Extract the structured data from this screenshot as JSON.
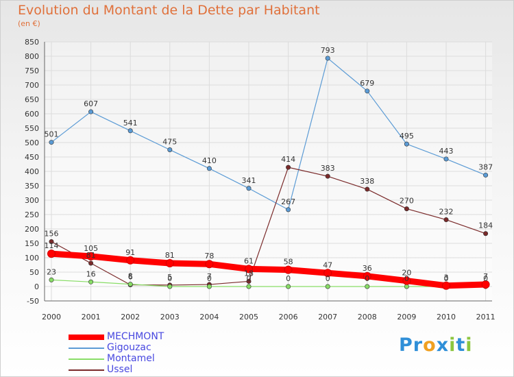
{
  "chart_data": {
    "type": "line",
    "title": "Evolution du Montant de la Dette par Habitant",
    "subtitle": "(en €)",
    "x": [
      "2000",
      "2001",
      "2002",
      "2003",
      "2004",
      "2005",
      "2006",
      "2007",
      "2008",
      "2009",
      "2010",
      "2011"
    ],
    "ylim": [
      -50,
      850
    ],
    "yticks": [
      -50,
      0,
      50,
      100,
      150,
      200,
      250,
      300,
      350,
      400,
      450,
      500,
      550,
      600,
      650,
      700,
      750,
      800,
      850
    ],
    "grid": true,
    "legend_position": "bottom-left",
    "series": [
      {
        "name": "MECHMONT",
        "color": "#ff0000",
        "values": [
          114,
          105,
          91,
          81,
          78,
          61,
          58,
          47,
          36,
          20,
          3,
          7
        ]
      },
      {
        "name": "Gigouzac",
        "color": "#5b9bd5",
        "values": [
          501,
          607,
          541,
          475,
          410,
          341,
          267,
          793,
          679,
          495,
          443,
          387
        ]
      },
      {
        "name": "Montamel",
        "color": "#88dd66",
        "values": [
          23,
          16,
          8,
          0,
          0,
          0,
          0,
          0,
          0,
          0,
          0,
          0
        ]
      },
      {
        "name": "Ussel",
        "color": "#7a2a2a",
        "values": [
          156,
          81,
          6,
          5,
          7,
          18,
          414,
          383,
          338,
          270,
          232,
          184
        ]
      }
    ]
  },
  "logo": {
    "letters": [
      {
        "ch": "P",
        "color": "#2f8fd8"
      },
      {
        "ch": "r",
        "color": "#2f8fd8"
      },
      {
        "ch": "o",
        "color": "#f0a020"
      },
      {
        "ch": "x",
        "color": "#2f8fd8"
      },
      {
        "ch": "i",
        "color": "#8cc63f"
      },
      {
        "ch": "t",
        "color": "#2f8fd8"
      },
      {
        "ch": "i",
        "color": "#8cc63f"
      }
    ]
  }
}
